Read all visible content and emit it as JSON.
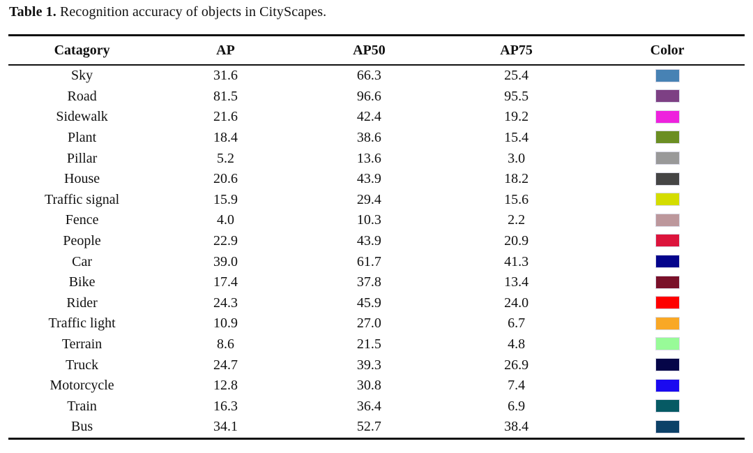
{
  "caption": {
    "label": "Table 1.",
    "text": " Recognition accuracy of objects in CityScapes."
  },
  "table": {
    "headers": [
      "Catagory",
      "AP",
      "AP50",
      "AP75",
      "Color"
    ],
    "rows": [
      {
        "category": "Sky",
        "ap": "31.6",
        "ap50": "66.3",
        "ap75": "25.4",
        "color": "#4782B4"
      },
      {
        "category": "Road",
        "ap": "81.5",
        "ap50": "96.6",
        "ap75": "95.5",
        "color": "#7D4084"
      },
      {
        "category": "Sidewalk",
        "ap": "21.6",
        "ap50": "42.4",
        "ap75": "19.2",
        "color": "#EE22DD"
      },
      {
        "category": "Plant",
        "ap": "18.4",
        "ap50": "38.6",
        "ap75": "15.4",
        "color": "#6B8E23"
      },
      {
        "category": "Pillar",
        "ap": "5.2",
        "ap50": "13.6",
        "ap75": "3.0",
        "color": "#999999"
      },
      {
        "category": "House",
        "ap": "20.6",
        "ap50": "43.9",
        "ap75": "18.2",
        "color": "#454545"
      },
      {
        "category": "Traffic signal",
        "ap": "15.9",
        "ap50": "29.4",
        "ap75": "15.6",
        "color": "#D4DD00"
      },
      {
        "category": "Fence",
        "ap": "4.0",
        "ap50": "10.3",
        "ap75": "2.2",
        "color": "#BC979C"
      },
      {
        "category": "People",
        "ap": "22.9",
        "ap50": "43.9",
        "ap75": "20.9",
        "color": "#DC143C"
      },
      {
        "category": "Car",
        "ap": "39.0",
        "ap50": "61.7",
        "ap75": "41.3",
        "color": "#04048C"
      },
      {
        "category": "Bike",
        "ap": "17.4",
        "ap50": "37.8",
        "ap75": "13.4",
        "color": "#7A1029"
      },
      {
        "category": "Rider",
        "ap": "24.3",
        "ap50": "45.9",
        "ap75": "24.0",
        "color": "#FE0000"
      },
      {
        "category": "Traffic light",
        "ap": "10.9",
        "ap50": "27.0",
        "ap75": "6.7",
        "color": "#F9A826"
      },
      {
        "category": "Terrain",
        "ap": "8.6",
        "ap50": "21.5",
        "ap75": "4.8",
        "color": "#98FB98"
      },
      {
        "category": "Truck",
        "ap": "24.7",
        "ap50": "39.3",
        "ap75": "26.9",
        "color": "#050548"
      },
      {
        "category": "Motorcycle",
        "ap": "12.8",
        "ap50": "30.8",
        "ap75": "7.4",
        "color": "#1A0AF0"
      },
      {
        "category": "Train",
        "ap": "16.3",
        "ap50": "36.4",
        "ap75": "6.9",
        "color": "#065A64"
      },
      {
        "category": "Bus",
        "ap": "34.1",
        "ap50": "52.7",
        "ap75": "38.4",
        "color": "#0D4168"
      }
    ]
  },
  "chart_data": {
    "type": "table",
    "title": "Table 1. Recognition accuracy of objects in CityScapes.",
    "columns": [
      "Catagory",
      "AP",
      "AP50",
      "AP75",
      "Color"
    ],
    "categories": [
      "Sky",
      "Road",
      "Sidewalk",
      "Plant",
      "Pillar",
      "House",
      "Traffic signal",
      "Fence",
      "People",
      "Car",
      "Bike",
      "Rider",
      "Traffic light",
      "Terrain",
      "Truck",
      "Motorcycle",
      "Train",
      "Bus"
    ],
    "series": [
      {
        "name": "AP",
        "values": [
          31.6,
          81.5,
          21.6,
          18.4,
          5.2,
          20.6,
          15.9,
          4.0,
          22.9,
          39.0,
          17.4,
          24.3,
          10.9,
          8.6,
          24.7,
          12.8,
          16.3,
          34.1
        ]
      },
      {
        "name": "AP50",
        "values": [
          66.3,
          96.6,
          42.4,
          38.6,
          13.6,
          43.9,
          29.4,
          10.3,
          43.9,
          61.7,
          37.8,
          45.9,
          27.0,
          21.5,
          39.3,
          30.8,
          36.4,
          52.7
        ]
      },
      {
        "name": "AP75",
        "values": [
          25.4,
          95.5,
          19.2,
          15.4,
          3.0,
          18.2,
          15.6,
          2.2,
          20.9,
          41.3,
          13.4,
          24.0,
          6.7,
          4.8,
          26.9,
          7.4,
          6.9,
          38.4
        ]
      }
    ],
    "row_colors": [
      "#4782B4",
      "#7D4084",
      "#EE22DD",
      "#6B8E23",
      "#999999",
      "#454545",
      "#D4DD00",
      "#BC979C",
      "#DC143C",
      "#04048C",
      "#7A1029",
      "#FE0000",
      "#F9A826",
      "#98FB98",
      "#050548",
      "#1A0AF0",
      "#065A64",
      "#0D4168"
    ]
  }
}
